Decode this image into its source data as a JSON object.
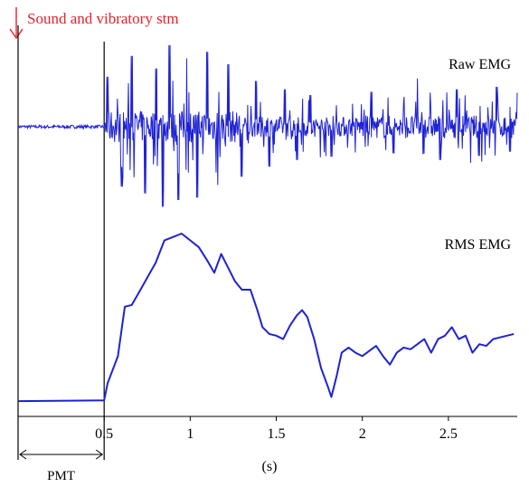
{
  "chart_data": {
    "type": "line",
    "annotation": {
      "text": "Sound and vibratory stm",
      "color": "#e8212a"
    },
    "xlabel": "(s)",
    "xlim": [
      0,
      2.9
    ],
    "xticks": [
      0.5,
      1,
      1.5,
      2,
      2.5
    ],
    "xtick_labels": [
      "0.5",
      "1",
      "1.5",
      "2",
      "2.5"
    ],
    "interval_label": "PMT",
    "onset_x": 0.5,
    "line_color": "#1e22d4",
    "series": [
      {
        "name": "Raw EMG",
        "kind": "raw",
        "noise_before": 0.02,
        "noise_after": 0.12,
        "bursts": [
          {
            "x": 0.52,
            "y": 0.6
          },
          {
            "x": 0.6,
            "y": -0.72
          },
          {
            "x": 0.66,
            "y": 0.85
          },
          {
            "x": 0.74,
            "y": -0.8
          },
          {
            "x": 0.8,
            "y": 0.7
          },
          {
            "x": 0.84,
            "y": -0.96
          },
          {
            "x": 0.88,
            "y": 0.98
          },
          {
            "x": 0.93,
            "y": -0.88
          },
          {
            "x": 0.98,
            "y": 0.82
          },
          {
            "x": 1.04,
            "y": -0.85
          },
          {
            "x": 1.1,
            "y": 0.9
          },
          {
            "x": 1.16,
            "y": -0.7
          },
          {
            "x": 1.22,
            "y": 0.75
          },
          {
            "x": 1.3,
            "y": -0.6
          },
          {
            "x": 1.38,
            "y": 0.55
          },
          {
            "x": 1.46,
            "y": -0.48
          },
          {
            "x": 1.55,
            "y": 0.45
          },
          {
            "x": 1.62,
            "y": -0.4
          },
          {
            "x": 1.7,
            "y": 0.38
          },
          {
            "x": 1.82,
            "y": -0.36
          },
          {
            "x": 2.05,
            "y": 0.42
          },
          {
            "x": 2.18,
            "y": -0.32
          },
          {
            "x": 2.32,
            "y": 0.58
          },
          {
            "x": 2.45,
            "y": -0.4
          },
          {
            "x": 2.55,
            "y": 0.45
          },
          {
            "x": 2.68,
            "y": -0.35
          },
          {
            "x": 2.78,
            "y": 0.48
          },
          {
            "x": 2.86,
            "y": -0.3
          }
        ]
      },
      {
        "name": "RMS EMG",
        "kind": "rms",
        "x": [
          0.0,
          0.3,
          0.5,
          0.52,
          0.58,
          0.62,
          0.66,
          0.7,
          0.75,
          0.8,
          0.85,
          0.9,
          0.95,
          1.0,
          1.05,
          1.1,
          1.14,
          1.18,
          1.22,
          1.26,
          1.3,
          1.35,
          1.39,
          1.42,
          1.46,
          1.5,
          1.54,
          1.58,
          1.62,
          1.65,
          1.68,
          1.72,
          1.76,
          1.8,
          1.82,
          1.85,
          1.88,
          1.92,
          1.96,
          2.0,
          2.04,
          2.08,
          2.12,
          2.16,
          2.2,
          2.24,
          2.28,
          2.32,
          2.36,
          2.4,
          2.44,
          2.48,
          2.52,
          2.56,
          2.6,
          2.64,
          2.68,
          2.72,
          2.76,
          2.8,
          2.84,
          2.88
        ],
        "y": [
          0.015,
          0.018,
          0.02,
          0.12,
          0.28,
          0.57,
          0.58,
          0.65,
          0.74,
          0.83,
          0.96,
          0.98,
          1.0,
          0.96,
          0.92,
          0.84,
          0.77,
          0.88,
          0.8,
          0.72,
          0.67,
          0.67,
          0.55,
          0.45,
          0.41,
          0.4,
          0.38,
          0.46,
          0.52,
          0.55,
          0.51,
          0.38,
          0.21,
          0.1,
          0.04,
          0.16,
          0.3,
          0.33,
          0.3,
          0.28,
          0.31,
          0.34,
          0.28,
          0.23,
          0.3,
          0.33,
          0.32,
          0.35,
          0.38,
          0.3,
          0.38,
          0.4,
          0.45,
          0.38,
          0.4,
          0.3,
          0.35,
          0.34,
          0.38,
          0.39,
          0.4,
          0.41
        ]
      }
    ]
  }
}
